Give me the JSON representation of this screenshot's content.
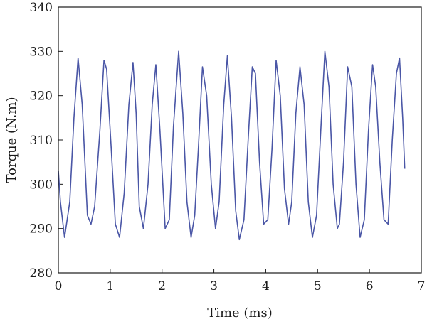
{
  "chart_data": {
    "type": "line",
    "title": "",
    "xlabel": "Time (ms)",
    "ylabel": "Torque (N.m)",
    "xlim": [
      0,
      7
    ],
    "ylim": [
      280,
      340
    ],
    "x_ticks": [
      0,
      1,
      2,
      3,
      4,
      5,
      6,
      7
    ],
    "y_ticks": [
      280,
      290,
      300,
      310,
      320,
      330,
      340
    ],
    "grid": false,
    "line_color": "#4a56a6",
    "series": [
      {
        "x": [
          0.0,
          0.04,
          0.12,
          0.22,
          0.3,
          0.38,
          0.46,
          0.56,
          0.63,
          0.7,
          0.8,
          0.88,
          0.93,
          1.02,
          1.1,
          1.18,
          1.27,
          1.36,
          1.44,
          1.5,
          1.56,
          1.64,
          1.73,
          1.81,
          1.88,
          1.96,
          2.06,
          2.14,
          2.22,
          2.32,
          2.4,
          2.48,
          2.56,
          2.63,
          2.7,
          2.78,
          2.86,
          2.95,
          3.03,
          3.1,
          3.19,
          3.26,
          3.34,
          3.42,
          3.49,
          3.58,
          3.66,
          3.74,
          3.8,
          3.88,
          3.96,
          4.04,
          4.12,
          4.2,
          4.28,
          4.36,
          4.44,
          4.5,
          4.58,
          4.66,
          4.74,
          4.82,
          4.9,
          4.98,
          5.06,
          5.14,
          5.22,
          5.3,
          5.38,
          5.42,
          5.5,
          5.58,
          5.66,
          5.74,
          5.82,
          5.9,
          5.98,
          6.06,
          6.12,
          6.2,
          6.28,
          6.36,
          6.44,
          6.52,
          6.58,
          6.64,
          6.68
        ],
        "y": [
          303,
          296,
          288,
          296,
          315,
          328.5,
          318,
          293,
          291,
          295,
          312,
          328,
          326,
          308,
          291,
          288,
          298,
          318,
          327.5,
          316,
          295,
          290,
          300,
          318,
          327,
          312,
          290,
          292,
          313,
          330,
          316,
          296,
          288,
          293,
          308,
          326.5,
          320,
          300,
          290,
          296,
          318,
          329,
          315,
          294,
          287.5,
          292,
          310,
          326.5,
          325,
          305,
          291,
          292,
          308,
          328,
          320,
          299,
          291,
          296,
          316,
          326.5,
          318,
          296,
          288,
          293,
          312,
          330,
          322,
          300,
          290,
          291,
          305,
          326.5,
          322,
          300,
          288,
          292,
          312,
          327,
          322,
          305,
          292,
          291,
          310,
          325,
          328.5,
          315,
          303.5
        ]
      }
    ]
  }
}
